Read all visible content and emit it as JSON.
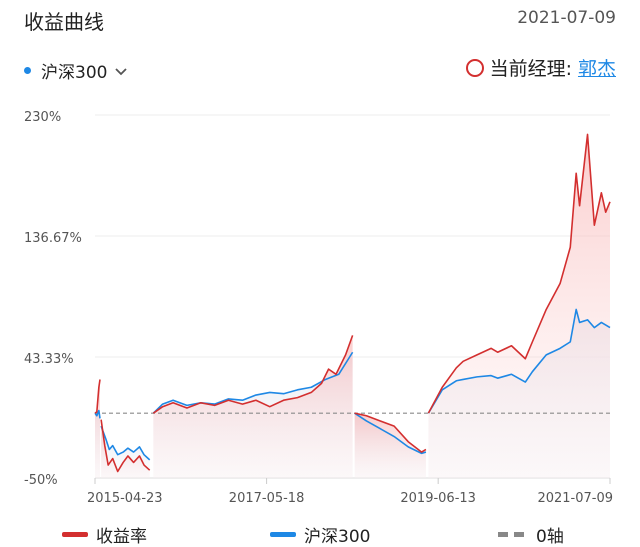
{
  "header": {
    "title": "收益曲线",
    "date": "2021-07-09"
  },
  "selector": {
    "label": "沪深300",
    "icon": "chevron-down-icon",
    "dot_color": "#1e88e5"
  },
  "manager": {
    "label": "当前经理:",
    "name": "郭杰",
    "icon": "circle-icon"
  },
  "legend": {
    "items": [
      {
        "name": "收益率",
        "color": "#d32f2f"
      },
      {
        "name": "沪深300",
        "color": "#1e88e5"
      },
      {
        "name": "0轴",
        "color": "#888888"
      }
    ]
  },
  "chart_data": {
    "type": "line",
    "yunit": "%",
    "ylim": [
      -50,
      230
    ],
    "yticks": [
      "230%",
      "136.67%",
      "43.33%",
      "-50%"
    ],
    "xticks": [
      "2015-04-23",
      "2017-05-18",
      "2019-06-13",
      "2021-07-09"
    ],
    "grid": true,
    "legend_position": "bottom",
    "series": [
      {
        "name": "收益率",
        "color": "#d32f2f",
        "segments": [
          [
            [
              "2015-04-23",
              0
            ],
            [
              "2015-05-01",
              1
            ],
            [
              "2015-05-10",
              20
            ],
            [
              "2015-05-15",
              26
            ]
          ],
          [
            [
              "2015-05-20",
              -5
            ],
            [
              "2015-06-05",
              -25
            ],
            [
              "2015-06-20",
              -40
            ],
            [
              "2015-07-10",
              -35
            ],
            [
              "2015-08-01",
              -45
            ],
            [
              "2015-08-25",
              -38
            ],
            [
              "2015-09-15",
              -33
            ],
            [
              "2015-10-10",
              -38
            ],
            [
              "2015-11-05",
              -33
            ],
            [
              "2015-11-25",
              -40
            ],
            [
              "2015-12-20",
              -44
            ]
          ],
          [
            [
              "2016-01-05",
              0
            ],
            [
              "2016-02-15",
              5
            ],
            [
              "2016-04-01",
              8
            ],
            [
              "2016-06-01",
              4
            ],
            [
              "2016-08-01",
              8
            ],
            [
              "2016-10-01",
              6
            ],
            [
              "2016-12-01",
              10
            ],
            [
              "2017-02-01",
              7
            ],
            [
              "2017-04-01",
              10
            ],
            [
              "2017-06-01",
              5
            ],
            [
              "2017-08-01",
              10
            ],
            [
              "2017-10-01",
              12
            ],
            [
              "2017-12-01",
              16
            ],
            [
              "2018-01-15",
              23
            ],
            [
              "2018-02-15",
              34
            ],
            [
              "2018-03-20",
              30
            ],
            [
              "2018-05-01",
              45
            ],
            [
              "2018-06-01",
              60
            ]
          ],
          [
            [
              "2018-06-10",
              0
            ],
            [
              "2018-08-01",
              -2
            ],
            [
              "2018-10-01",
              -6
            ],
            [
              "2018-12-01",
              -10
            ],
            [
              "2019-02-01",
              -22
            ],
            [
              "2019-04-01",
              -30
            ],
            [
              "2019-04-20",
              -28
            ]
          ],
          [
            [
              "2019-05-01",
              0
            ],
            [
              "2019-07-01",
              20
            ],
            [
              "2019-09-01",
              35
            ],
            [
              "2019-10-01",
              40
            ],
            [
              "2019-12-01",
              45
            ],
            [
              "2020-02-01",
              50
            ],
            [
              "2020-03-01",
              47
            ],
            [
              "2020-05-01",
              52
            ],
            [
              "2020-07-01",
              42
            ],
            [
              "2020-08-01",
              55
            ],
            [
              "2020-10-01",
              80
            ],
            [
              "2020-12-01",
              100
            ],
            [
              "2021-01-15",
              128
            ],
            [
              "2021-02-10",
              185
            ],
            [
              "2021-02-25",
              160
            ],
            [
              "2021-04-01",
              215
            ],
            [
              "2021-05-01",
              145
            ],
            [
              "2021-06-01",
              170
            ],
            [
              "2021-06-20",
              155
            ],
            [
              "2021-07-09",
              163
            ]
          ]
        ]
      },
      {
        "name": "沪深300",
        "color": "#1e88e5",
        "segments": [
          [
            [
              "2015-04-23",
              0
            ],
            [
              "2015-05-01",
              -2
            ],
            [
              "2015-05-10",
              2
            ],
            [
              "2015-05-15",
              -4
            ]
          ],
          [
            [
              "2015-05-20",
              -10
            ],
            [
              "2015-06-10",
              -20
            ],
            [
              "2015-06-25",
              -28
            ],
            [
              "2015-07-10",
              -25
            ],
            [
              "2015-08-01",
              -32
            ],
            [
              "2015-08-25",
              -30
            ],
            [
              "2015-09-15",
              -27
            ],
            [
              "2015-10-10",
              -30
            ],
            [
              "2015-11-05",
              -26
            ],
            [
              "2015-11-25",
              -32
            ],
            [
              "2015-12-20",
              -36
            ]
          ],
          [
            [
              "2016-01-05",
              0
            ],
            [
              "2016-02-15",
              7
            ],
            [
              "2016-04-01",
              10
            ],
            [
              "2016-06-01",
              6
            ],
            [
              "2016-08-01",
              8
            ],
            [
              "2016-10-01",
              7
            ],
            [
              "2016-12-01",
              11
            ],
            [
              "2017-02-01",
              10
            ],
            [
              "2017-04-01",
              14
            ],
            [
              "2017-06-01",
              16
            ],
            [
              "2017-08-01",
              15
            ],
            [
              "2017-10-01",
              18
            ],
            [
              "2017-12-01",
              20
            ],
            [
              "2018-02-01",
              26
            ],
            [
              "2018-04-01",
              30
            ],
            [
              "2018-06-01",
              47
            ]
          ],
          [
            [
              "2018-06-10",
              0
            ],
            [
              "2018-08-01",
              -6
            ],
            [
              "2018-10-01",
              -12
            ],
            [
              "2018-12-01",
              -18
            ],
            [
              "2019-02-01",
              -26
            ],
            [
              "2019-04-01",
              -31
            ],
            [
              "2019-04-20",
              -30
            ]
          ],
          [
            [
              "2019-05-01",
              0
            ],
            [
              "2019-07-01",
              18
            ],
            [
              "2019-09-01",
              25
            ],
            [
              "2019-10-01",
              26
            ],
            [
              "2019-12-01",
              28
            ],
            [
              "2020-02-01",
              29
            ],
            [
              "2020-03-01",
              27
            ],
            [
              "2020-05-01",
              30
            ],
            [
              "2020-07-01",
              24
            ],
            [
              "2020-08-01",
              32
            ],
            [
              "2020-10-01",
              45
            ],
            [
              "2020-12-01",
              50
            ],
            [
              "2021-01-15",
              55
            ],
            [
              "2021-02-10",
              80
            ],
            [
              "2021-02-25",
              70
            ],
            [
              "2021-04-01",
              72
            ],
            [
              "2021-05-01",
              66
            ],
            [
              "2021-06-01",
              70
            ],
            [
              "2021-07-09",
              66
            ]
          ]
        ]
      }
    ]
  }
}
